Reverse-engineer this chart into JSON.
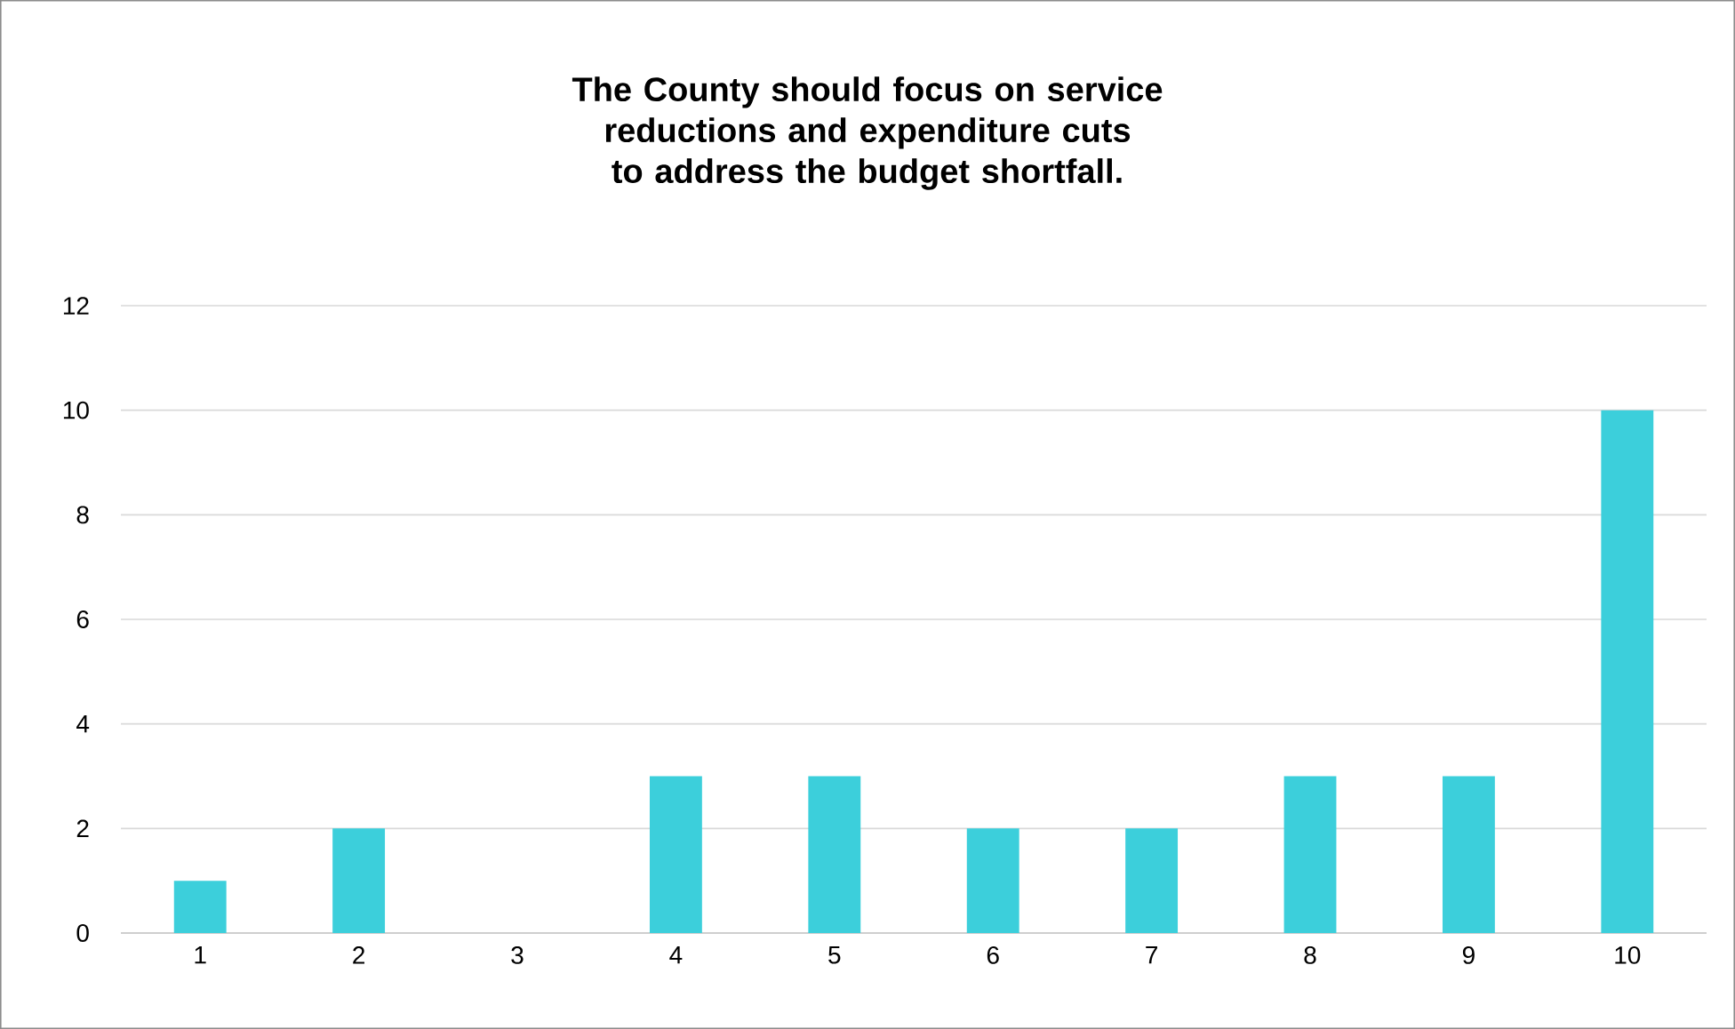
{
  "chart_data": {
    "type": "bar",
    "title": "The County should focus on service reductions and expenditure cuts to address the budget shortfall.",
    "categories": [
      "1",
      "2",
      "3",
      "4",
      "5",
      "6",
      "7",
      "8",
      "9",
      "10"
    ],
    "values": [
      1,
      2,
      0,
      3,
      3,
      2,
      2,
      3,
      3,
      10
    ],
    "color": "#3ccfdb",
    "ylim": [
      0,
      12
    ],
    "yticks": [
      0,
      2,
      4,
      6,
      8,
      10,
      12
    ],
    "grid": "y"
  }
}
